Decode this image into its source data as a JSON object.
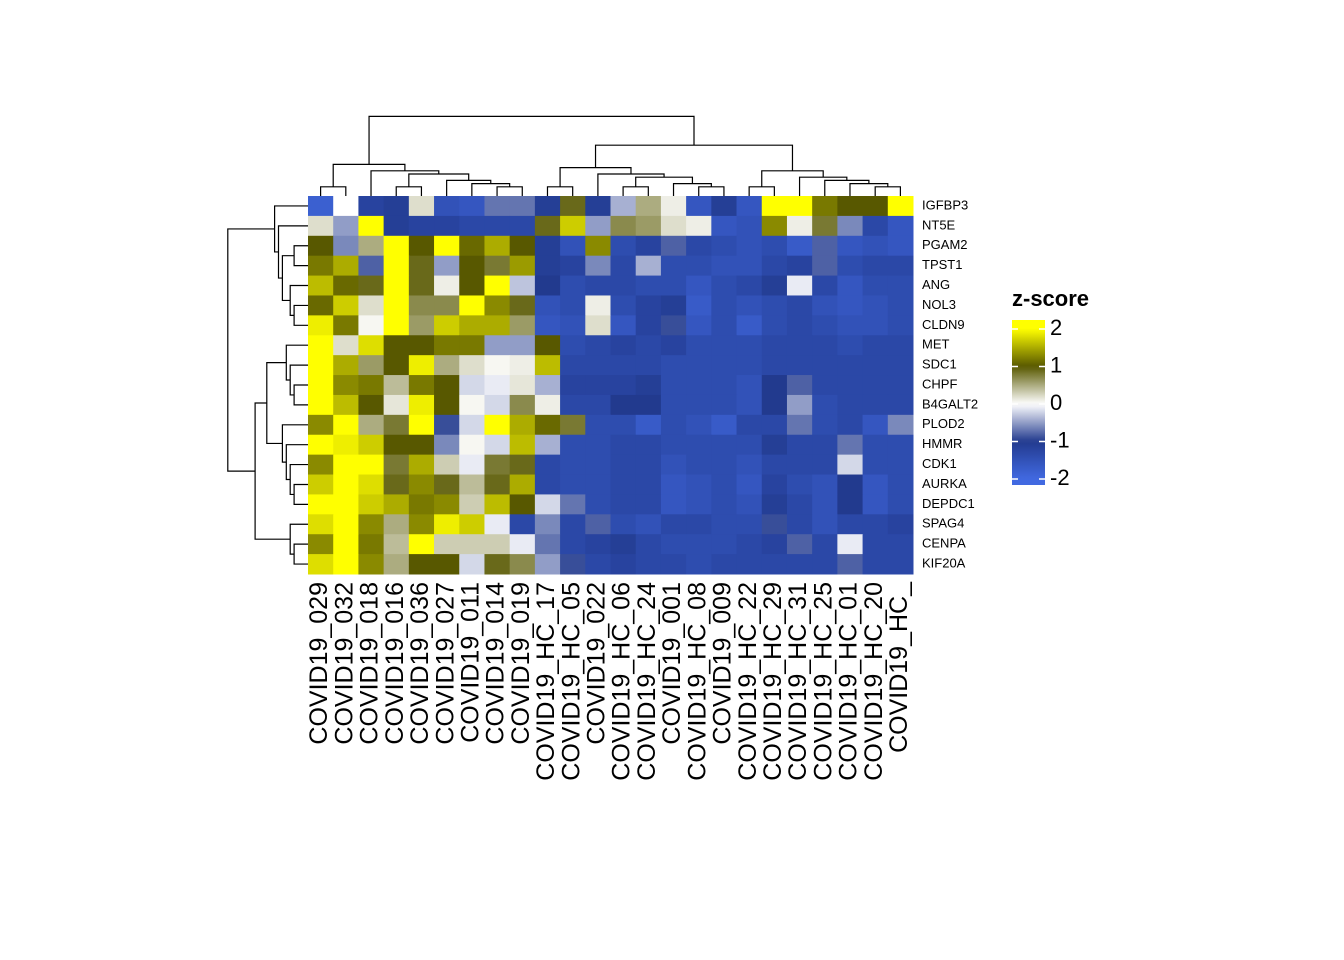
{
  "chart_data": {
    "type": "heatmap",
    "rows": [
      "IGFBP3",
      "NT5E",
      "PGAM2",
      "TPST1",
      "ANG",
      "NOL3",
      "CLDN9",
      "MET",
      "SDC1",
      "CHPF",
      "B4GALT2",
      "PLOD2",
      "HMMR",
      "CDK1",
      "AURKA",
      "DEPDC1",
      "SPAG4",
      "CENPA",
      "KIF20A"
    ],
    "columns": [
      "COVID19_029",
      "COVID19_032",
      "COVID19_018",
      "COVID19_016",
      "COVID19_036",
      "COVID19_027",
      "COVID19_011",
      "COVID19_014",
      "COVID19_019",
      "COVID19_HC_17",
      "COVID19_HC_05",
      "COVID19_022",
      "COVID19_HC_06",
      "COVID19_HC_24",
      "COVID19_001",
      "COVID19_HC_08",
      "COVID19_009",
      "COVID19_HC_22",
      "COVID19_HC_29",
      "COVID19_HC_31",
      "COVID19_HC_25",
      "COVID19_HC_01",
      "COVID19_HC_20",
      "COVID19_HC_"
    ],
    "values": [
      [
        -1.8,
        0.0,
        -1.2,
        -1.1,
        0.2,
        -1.5,
        -1.6,
        -0.7,
        -0.7,
        -1.1,
        0.9,
        -1.1,
        -0.4,
        0.5,
        0.1,
        -1.6,
        -1.1,
        -1.6,
        2.1,
        2.1,
        1.2,
        1.0,
        1.0,
        2.0
      ],
      [
        0.2,
        -0.5,
        2.1,
        -1.1,
        -1.2,
        -1.2,
        -1.3,
        -1.3,
        -1.3,
        0.9,
        1.7,
        -0.5,
        0.7,
        0.6,
        0.2,
        0.1,
        -1.6,
        -1.5,
        1.3,
        0.1,
        0.8,
        -0.6,
        -1.3,
        -1.6
      ],
      [
        1.0,
        -0.6,
        0.5,
        2.2,
        1.0,
        2.2,
        1.1,
        1.5,
        1.0,
        -1.1,
        -1.5,
        1.3,
        -1.4,
        -1.2,
        -0.8,
        -1.3,
        -1.4,
        -1.5,
        -1.4,
        -1.7,
        -0.8,
        -1.6,
        -1.5,
        -1.6
      ],
      [
        1.2,
        1.5,
        -0.8,
        2.2,
        0.9,
        -0.5,
        1.0,
        0.8,
        1.4,
        -1.1,
        -1.2,
        -0.6,
        -1.3,
        -0.4,
        -1.4,
        -1.4,
        -1.5,
        -1.5,
        -1.3,
        -1.2,
        -0.8,
        -1.4,
        -1.3,
        -1.3
      ],
      [
        1.6,
        1.1,
        0.9,
        2.2,
        0.9,
        0.1,
        1.0,
        2.1,
        -0.3,
        -1.0,
        -1.4,
        -1.3,
        -1.3,
        -1.4,
        -1.4,
        -1.6,
        -1.4,
        -1.3,
        -1.1,
        -0.1,
        -1.3,
        -1.6,
        -1.4,
        -1.4
      ],
      [
        1.1,
        1.7,
        0.2,
        2.2,
        0.7,
        0.7,
        2.1,
        1.3,
        0.9,
        -1.5,
        -1.4,
        0.1,
        -1.4,
        -1.2,
        -1.1,
        -1.7,
        -1.4,
        -1.5,
        -1.4,
        -1.3,
        -1.5,
        -1.6,
        -1.5,
        -1.4
      ],
      [
        1.9,
        1.2,
        0.05,
        2.2,
        0.6,
        1.7,
        1.5,
        1.5,
        0.6,
        -1.6,
        -1.5,
        0.2,
        -1.6,
        -1.2,
        -0.9,
        -1.6,
        -1.4,
        -1.7,
        -1.4,
        -1.3,
        -1.4,
        -1.5,
        -1.5,
        -1.4
      ],
      [
        2.2,
        0.2,
        1.8,
        1.0,
        1.0,
        1.2,
        1.2,
        -0.5,
        -0.5,
        1.0,
        -1.4,
        -1.3,
        -1.2,
        -1.3,
        -1.2,
        -1.4,
        -1.4,
        -1.4,
        -1.3,
        -1.3,
        -1.3,
        -1.4,
        -1.3,
        -1.3
      ],
      [
        2.2,
        1.5,
        0.6,
        1.0,
        1.9,
        0.5,
        0.2,
        0.05,
        0.1,
        1.6,
        -1.3,
        -1.3,
        -1.3,
        -1.3,
        -1.4,
        -1.4,
        -1.4,
        -1.4,
        -1.3,
        -1.3,
        -1.3,
        -1.3,
        -1.3,
        -1.3
      ],
      [
        2.2,
        1.3,
        1.2,
        0.4,
        1.2,
        1.0,
        -0.2,
        -0.1,
        0.15,
        -0.4,
        -1.2,
        -1.2,
        -1.2,
        -1.1,
        -1.4,
        -1.4,
        -1.4,
        -1.5,
        -1.0,
        -0.8,
        -1.3,
        -1.3,
        -1.3,
        -1.3
      ],
      [
        2.2,
        1.6,
        1.0,
        0.15,
        1.9,
        1.0,
        0.05,
        -0.2,
        0.7,
        0.1,
        -1.3,
        -1.3,
        -1.0,
        -1.0,
        -1.4,
        -1.4,
        -1.4,
        -1.5,
        -1.0,
        -0.5,
        -1.4,
        -1.3,
        -1.3,
        -1.3
      ],
      [
        1.3,
        2.1,
        0.5,
        0.8,
        2.2,
        -0.9,
        -0.2,
        2.0,
        1.5,
        1.1,
        0.8,
        -1.4,
        -1.4,
        -1.7,
        -1.4,
        -1.5,
        -1.7,
        -1.3,
        -1.3,
        -0.7,
        -1.4,
        -1.3,
        -1.6,
        -0.6
      ],
      [
        2.2,
        1.9,
        1.7,
        1.0,
        1.0,
        -0.6,
        0.05,
        -0.2,
        1.6,
        -0.4,
        -1.4,
        -1.4,
        -1.3,
        -1.3,
        -1.4,
        -1.4,
        -1.4,
        -1.4,
        -1.1,
        -1.3,
        -1.3,
        -0.7,
        -1.4,
        -1.4
      ],
      [
        1.3,
        2.2,
        2.2,
        0.8,
        1.5,
        0.3,
        -0.1,
        0.8,
        0.9,
        -1.3,
        -1.4,
        -1.4,
        -1.3,
        -1.3,
        -1.5,
        -1.4,
        -1.4,
        -1.5,
        -1.3,
        -1.3,
        -1.3,
        -0.2,
        -1.4,
        -1.4
      ],
      [
        1.7,
        2.2,
        1.8,
        0.9,
        1.3,
        0.9,
        0.4,
        0.9,
        1.5,
        -1.3,
        -1.4,
        -1.4,
        -1.3,
        -1.3,
        -1.6,
        -1.5,
        -1.4,
        -1.6,
        -1.2,
        -1.4,
        -1.5,
        -1.0,
        -1.6,
        -1.4
      ],
      [
        2.2,
        2.1,
        1.7,
        1.5,
        1.2,
        1.3,
        0.3,
        1.6,
        1.0,
        -0.2,
        -0.7,
        -1.4,
        -1.3,
        -1.3,
        -1.6,
        -1.5,
        -1.4,
        -1.5,
        -1.1,
        -1.3,
        -1.5,
        -1.0,
        -1.6,
        -1.4
      ],
      [
        1.8,
        2.2,
        1.3,
        0.5,
        1.3,
        1.9,
        1.7,
        -0.1,
        -1.3,
        -0.6,
        -1.3,
        -0.8,
        -1.4,
        -1.5,
        -1.3,
        -1.3,
        -1.4,
        -1.4,
        -0.9,
        -1.3,
        -1.5,
        -1.3,
        -1.3,
        -1.2
      ],
      [
        1.3,
        2.2,
        1.2,
        0.4,
        2.2,
        0.3,
        0.3,
        0.3,
        -0.1,
        -0.7,
        -1.3,
        -1.2,
        -1.1,
        -1.3,
        -1.4,
        -1.4,
        -1.4,
        -1.3,
        -1.2,
        -0.8,
        -1.3,
        -0.1,
        -1.3,
        -1.3
      ],
      [
        1.8,
        2.2,
        1.3,
        0.5,
        1.0,
        1.0,
        -0.2,
        0.9,
        0.7,
        -0.5,
        -0.9,
        -1.3,
        -1.2,
        -1.3,
        -1.3,
        -1.4,
        -1.3,
        -1.3,
        -1.3,
        -1.3,
        -1.3,
        -0.8,
        -1.3,
        -1.3
      ]
    ],
    "legend_title": "z-score",
    "color_stops": [
      [
        -2,
        "#4169e1"
      ],
      [
        -1,
        "#223a8e"
      ],
      [
        0,
        "#ffffff"
      ],
      [
        1,
        "#585800"
      ],
      [
        2,
        "#ffff00"
      ]
    ],
    "colorbar_lim": [
      -2.16,
      2.24
    ],
    "colorbar_ticks": [
      -2,
      -1,
      0,
      1,
      2
    ]
  }
}
